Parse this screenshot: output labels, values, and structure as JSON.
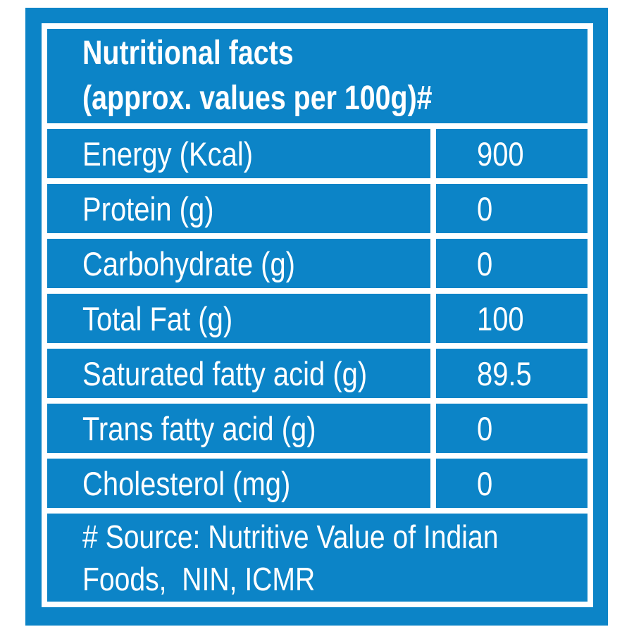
{
  "label": {
    "bg_color": "#0c84c7",
    "border_color": "#ffffff",
    "text_color": "#ffffff",
    "header": {
      "line1": "Nutritional facts",
      "line2": "(approx. values per 100g)#"
    },
    "table": {
      "rows": [
        {
          "label": "Energy (Kcal)",
          "value": "900"
        },
        {
          "label": "Protein (g)",
          "value": "0"
        },
        {
          "label": "Carbohydrate (g)",
          "value": "0"
        },
        {
          "label": "Total Fat (g)",
          "value": "100"
        },
        {
          "label": "Saturated fatty acid (g)",
          "value": "89.5"
        },
        {
          "label": "Trans fatty acid (g)",
          "value": "0"
        },
        {
          "label": "Cholesterol (mg)",
          "value": "0"
        }
      ]
    },
    "footer": {
      "line1": "# Source: Nutritive Value of Indian",
      "line2": "Foods,  NIN, ICMR"
    }
  }
}
